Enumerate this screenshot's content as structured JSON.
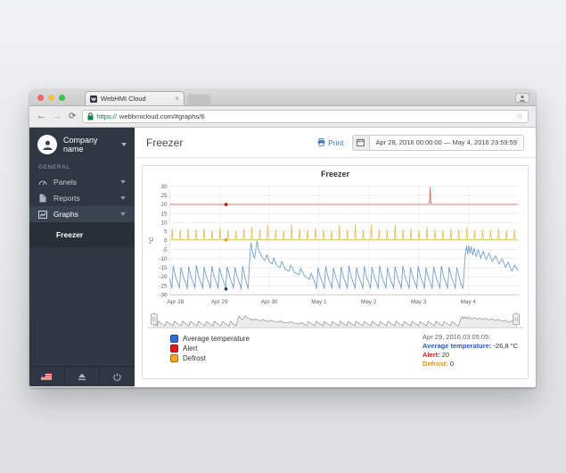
{
  "browser": {
    "tab_title": "WebHMI Cloud",
    "tab_close": "×",
    "back": "←",
    "forward": "→",
    "reload": "⟳",
    "url_scheme": "https://",
    "url_rest": "webhmicloud.com/#graphs/6",
    "star": "☆"
  },
  "sidebar": {
    "company": "Company name",
    "section_label": "GENERAL",
    "items": [
      {
        "label": "Panels",
        "icon": "gauge-icon",
        "active": false
      },
      {
        "label": "Reports",
        "icon": "file-icon",
        "active": false
      },
      {
        "label": "Graphs",
        "icon": "chart-icon",
        "active": true
      }
    ],
    "subitem": "Freezer"
  },
  "header": {
    "title": "Freezer",
    "print_label": "Print",
    "date_range": "Apr 28, 2016 00:00:00 — May 4, 2016 23:59:59"
  },
  "legend": [
    {
      "label": "Average temperature",
      "color": "#2f6fd6"
    },
    {
      "label": "Alert",
      "color": "#e31b1c"
    },
    {
      "label": "Defrost",
      "color": "#f5a81c"
    }
  ],
  "tooltip": {
    "timestamp": "Apr 29, 2016 03:05:05:",
    "rows": [
      {
        "label": "Average temperature:",
        "value": " -26,8 °C",
        "color": "#2a5fc4"
      },
      {
        "label": "Alert:",
        "value": " 20",
        "color": "#cc2222"
      },
      {
        "label": "Defrost:",
        "value": " 0",
        "color": "#e1940f"
      }
    ]
  },
  "chart_data": {
    "type": "line",
    "title": "Freezer",
    "ylabel": "°C",
    "ylim": [
      -30,
      30
    ],
    "yticks": [
      30,
      25,
      20,
      15,
      10,
      5,
      0,
      -5,
      -10,
      -15,
      -20,
      -25,
      -30
    ],
    "xlim": [
      0,
      7
    ],
    "xticks": [
      [
        0,
        "Apr 28"
      ],
      [
        1,
        "Apr 29"
      ],
      [
        2,
        "Apr 30"
      ],
      [
        3,
        "May 1"
      ],
      [
        4,
        "May 2"
      ],
      [
        5,
        "May 3"
      ],
      [
        6,
        "May 4"
      ]
    ],
    "grid": true,
    "legend_position": "bottom-left",
    "series": [
      {
        "name": "Average temperature",
        "color": "#71a0cd",
        "style": "line",
        "points": [
          [
            0.0,
            -21.0
          ],
          [
            0.04,
            -26.5
          ],
          [
            0.07,
            -14.0
          ],
          [
            0.12,
            -20.3
          ],
          [
            0.18,
            -24.6
          ],
          [
            0.195,
            -26.5
          ],
          [
            0.225,
            -15.0
          ],
          [
            0.275,
            -20.3
          ],
          [
            0.335,
            -24.6
          ],
          [
            0.35,
            -26.8
          ],
          [
            0.38,
            -14.5
          ],
          [
            0.43,
            -20.3
          ],
          [
            0.49,
            -24.6
          ],
          [
            0.505,
            -26.5
          ],
          [
            0.535,
            -13.8
          ],
          [
            0.585,
            -20.3
          ],
          [
            0.645,
            -24.6
          ],
          [
            0.66,
            -26.7
          ],
          [
            0.69,
            -14.8
          ],
          [
            0.74,
            -20.3
          ],
          [
            0.8,
            -24.6
          ],
          [
            0.815,
            -26.5
          ],
          [
            0.845,
            -14.2
          ],
          [
            0.895,
            -20.3
          ],
          [
            0.955,
            -24.6
          ],
          [
            0.97,
            -26.6
          ],
          [
            1.0,
            -15.0
          ],
          [
            1.05,
            -20.3
          ],
          [
            1.11,
            -24.8
          ],
          [
            1.125,
            -26.8
          ],
          [
            1.155,
            -14.5
          ],
          [
            1.205,
            -20.3
          ],
          [
            1.265,
            -24.8
          ],
          [
            1.28,
            -26.5
          ],
          [
            1.31,
            -14.8
          ],
          [
            1.36,
            -20.5
          ],
          [
            1.42,
            -24.8
          ],
          [
            1.435,
            -27.0
          ],
          [
            1.465,
            -14.2
          ],
          [
            1.515,
            -21.0
          ],
          [
            1.56,
            -25.0
          ],
          [
            1.575,
            -26.8
          ],
          [
            1.6,
            -14.0
          ],
          [
            1.62,
            -5.0
          ],
          [
            1.635,
            -1.2
          ],
          [
            1.66,
            -6.0
          ],
          [
            1.685,
            -8.5
          ],
          [
            1.705,
            -9.8
          ],
          [
            1.73,
            -5.0
          ],
          [
            1.755,
            -0.3
          ],
          [
            1.79,
            -5.5
          ],
          [
            1.83,
            -8.0
          ],
          [
            1.88,
            -10.0
          ],
          [
            1.92,
            -11.0
          ],
          [
            1.95,
            -7.8
          ],
          [
            2.0,
            -11.5
          ],
          [
            2.06,
            -13.0
          ],
          [
            2.09,
            -9.5
          ],
          [
            2.15,
            -13.8
          ],
          [
            2.22,
            -15.0
          ],
          [
            2.25,
            -11.5
          ],
          [
            2.32,
            -15.8
          ],
          [
            2.4,
            -17.0
          ],
          [
            2.43,
            -13.5
          ],
          [
            2.51,
            -17.8
          ],
          [
            2.6,
            -19.0
          ],
          [
            2.63,
            -15.5
          ],
          [
            2.72,
            -20.0
          ],
          [
            2.81,
            -21.5
          ],
          [
            2.84,
            -18.0
          ],
          [
            2.91,
            -23.0
          ],
          [
            2.95,
            -26.6
          ],
          [
            2.98,
            -15.0
          ],
          [
            3.03,
            -20.5
          ],
          [
            3.09,
            -24.8
          ],
          [
            3.105,
            -26.6
          ],
          [
            3.135,
            -14.3
          ],
          [
            3.185,
            -20.5
          ],
          [
            3.245,
            -24.8
          ],
          [
            3.26,
            -26.6
          ],
          [
            3.29,
            -15.2
          ],
          [
            3.34,
            -20.5
          ],
          [
            3.4,
            -24.8
          ],
          [
            3.415,
            -26.6
          ],
          [
            3.445,
            -14.6
          ],
          [
            3.495,
            -20.5
          ],
          [
            3.555,
            -24.8
          ],
          [
            3.57,
            -26.6
          ],
          [
            3.6,
            -14.0
          ],
          [
            3.65,
            -20.5
          ],
          [
            3.71,
            -24.8
          ],
          [
            3.725,
            -26.6
          ],
          [
            3.755,
            -15.0
          ],
          [
            3.805,
            -20.5
          ],
          [
            3.865,
            -24.8
          ],
          [
            3.88,
            -26.6
          ],
          [
            3.91,
            -14.4
          ],
          [
            3.96,
            -20.5
          ],
          [
            4.02,
            -24.8
          ],
          [
            4.035,
            -26.6
          ],
          [
            4.065,
            -14.8
          ],
          [
            4.115,
            -20.5
          ],
          [
            4.175,
            -24.8
          ],
          [
            4.19,
            -26.6
          ],
          [
            4.22,
            -14.1
          ],
          [
            4.27,
            -20.5
          ],
          [
            4.33,
            -24.8
          ],
          [
            4.345,
            -26.6
          ],
          [
            4.375,
            -15.1
          ],
          [
            4.425,
            -20.5
          ],
          [
            4.485,
            -24.8
          ],
          [
            4.5,
            -26.6
          ],
          [
            4.53,
            -14.5
          ],
          [
            4.58,
            -20.5
          ],
          [
            4.64,
            -24.8
          ],
          [
            4.655,
            -26.6
          ],
          [
            4.685,
            -14.0
          ],
          [
            4.735,
            -20.5
          ],
          [
            4.795,
            -24.8
          ],
          [
            4.81,
            -26.6
          ],
          [
            4.84,
            -14.9
          ],
          [
            4.89,
            -20.5
          ],
          [
            4.95,
            -24.8
          ],
          [
            4.965,
            -26.6
          ],
          [
            4.995,
            -14.3
          ],
          [
            5.045,
            -20.5
          ],
          [
            5.105,
            -24.8
          ],
          [
            5.12,
            -26.6
          ],
          [
            5.15,
            -15.0
          ],
          [
            5.2,
            -20.5
          ],
          [
            5.26,
            -24.8
          ],
          [
            5.275,
            -26.6
          ],
          [
            5.305,
            -14.6
          ],
          [
            5.355,
            -20.5
          ],
          [
            5.415,
            -24.8
          ],
          [
            5.43,
            -26.6
          ],
          [
            5.46,
            -14.2
          ],
          [
            5.51,
            -20.5
          ],
          [
            5.57,
            -24.8
          ],
          [
            5.585,
            -26.6
          ],
          [
            5.615,
            -14.8
          ],
          [
            5.665,
            -20.5
          ],
          [
            5.725,
            -24.8
          ],
          [
            5.74,
            -26.6
          ],
          [
            5.77,
            -15.0
          ],
          [
            5.82,
            -20.5
          ],
          [
            5.87,
            -25.5
          ],
          [
            5.895,
            -26.5
          ],
          [
            5.92,
            -16.0
          ],
          [
            5.94,
            -8.0
          ],
          [
            5.965,
            -3.2
          ],
          [
            5.99,
            -7.5
          ],
          [
            6.01,
            -2.8
          ],
          [
            6.035,
            -7.0
          ],
          [
            6.06,
            -3.5
          ],
          [
            6.09,
            -8.2
          ],
          [
            6.12,
            -4.2
          ],
          [
            6.16,
            -9.0
          ],
          [
            6.2,
            -5.0
          ],
          [
            6.25,
            -9.8
          ],
          [
            6.3,
            -6.0
          ],
          [
            6.36,
            -10.5
          ],
          [
            6.42,
            -7.0
          ],
          [
            6.48,
            -11.5
          ],
          [
            6.55,
            -8.5
          ],
          [
            6.62,
            -13.0
          ],
          [
            6.68,
            -10.0
          ],
          [
            6.75,
            -15.0
          ],
          [
            6.8,
            -12.0
          ],
          [
            6.88,
            -17.0
          ],
          [
            6.93,
            -13.5
          ],
          [
            7.0,
            -16.5
          ]
        ]
      },
      {
        "name": "Alert",
        "color": "#d06a6a",
        "style": "line",
        "points": [
          [
            0,
            20
          ],
          [
            5.2,
            20
          ],
          [
            5.22,
            20.4
          ],
          [
            5.235,
            29.5
          ],
          [
            5.25,
            20.4
          ],
          [
            5.27,
            20
          ],
          [
            7,
            20
          ]
        ]
      },
      {
        "name": "Defrost",
        "color": "#e4c063",
        "style": "spikes",
        "baseline": 0.4,
        "spike_halfwidth": 0.016,
        "spikes": [
          [
            0.05,
            6.5
          ],
          [
            0.21,
            5.8
          ],
          [
            0.37,
            7.0
          ],
          [
            0.53,
            6.2
          ],
          [
            0.69,
            6.8
          ],
          [
            0.85,
            5.6
          ],
          [
            1.01,
            7.2
          ],
          [
            1.17,
            6.0
          ],
          [
            1.33,
            5.5
          ],
          [
            1.49,
            6.6
          ],
          [
            1.65,
            7.4
          ],
          [
            1.81,
            6.1
          ],
          [
            1.97,
            8.8
          ],
          [
            2.13,
            6.3
          ],
          [
            2.29,
            5.7
          ],
          [
            2.45,
            9.0
          ],
          [
            2.61,
            6.4
          ],
          [
            2.77,
            5.9
          ],
          [
            2.93,
            6.9
          ],
          [
            3.09,
            6.1
          ],
          [
            3.25,
            5.6
          ],
          [
            3.41,
            8.6
          ],
          [
            3.57,
            6.2
          ],
          [
            3.73,
            9.1
          ],
          [
            3.89,
            6.0
          ],
          [
            4.05,
            8.9
          ],
          [
            4.21,
            6.5
          ],
          [
            4.37,
            5.8
          ],
          [
            4.53,
            8.7
          ],
          [
            4.69,
            6.1
          ],
          [
            4.85,
            6.6
          ],
          [
            5.01,
            5.7
          ],
          [
            5.17,
            7.8
          ],
          [
            5.33,
            6.2
          ],
          [
            5.49,
            5.8
          ],
          [
            5.65,
            6.7
          ],
          [
            5.81,
            6.0
          ],
          [
            5.97,
            7.2
          ],
          [
            6.13,
            5.6
          ],
          [
            6.29,
            6.3
          ],
          [
            6.45,
            5.9
          ],
          [
            6.61,
            6.8
          ],
          [
            6.77,
            5.7
          ],
          [
            6.93,
            6.2
          ]
        ]
      }
    ],
    "markers": [
      {
        "series": "Average temperature",
        "x": 1.13,
        "y": -26.8,
        "color": "#1d4576"
      },
      {
        "series": "Alert",
        "x": 1.13,
        "y": 20,
        "color": "#b01c1c"
      },
      {
        "series": "Defrost",
        "x": 1.13,
        "y": 0.4,
        "color": "#dfa02a"
      }
    ],
    "navigator": {
      "source": "Average temperature",
      "range": "full"
    }
  }
}
